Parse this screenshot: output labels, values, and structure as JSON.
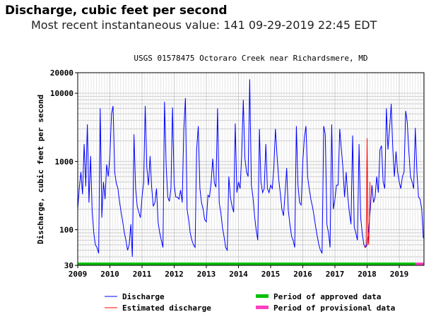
{
  "header": {
    "title": "Discharge, cubic feet per second",
    "subtitle": "Most recent instantaneous value: 141 09-29-2019   22:45 EDT"
  },
  "colors": {
    "discharge": "#0000ff",
    "estimated": "#ff0000",
    "approved": "#00c000",
    "provisional": "#ff40c0",
    "grid": "#c8c8c8"
  },
  "chart_data": {
    "type": "line",
    "title": "USGS 01578475 Octoraro Creek near Richardsmere, MD",
    "ylabel": "Discharge, cubic feet per second",
    "xlabel": "",
    "yscale": "log",
    "ylim": [
      30,
      20000
    ],
    "xlim": [
      2009.0,
      2019.77
    ],
    "yticks": [
      30,
      100,
      1000,
      10000,
      20000
    ],
    "xticks": [
      "2009",
      "2010",
      "2011",
      "2012",
      "2013",
      "2014",
      "2015",
      "2016",
      "2017",
      "2018",
      "2019"
    ],
    "grid": true,
    "legend_position": "bottom",
    "legend": [
      {
        "label": "Discharge",
        "kind": "line",
        "color": "#0000ff"
      },
      {
        "label": "Estimated discharge",
        "kind": "line",
        "color": "#ff0000"
      },
      {
        "label": "Period of approved data",
        "kind": "bar",
        "color": "#00c000"
      },
      {
        "label": "Period of provisional data",
        "kind": "bar",
        "color": "#ff40c0"
      }
    ],
    "series": [
      {
        "name": "Discharge",
        "color": "#0000ff",
        "x": [
          2009.0,
          2009.05,
          2009.1,
          2009.15,
          2009.2,
          2009.25,
          2009.3,
          2009.35,
          2009.4,
          2009.45,
          2009.5,
          2009.55,
          2009.6,
          2009.65,
          2009.7,
          2009.75,
          2009.8,
          2009.85,
          2009.9,
          2009.95,
          2010.0,
          2010.05,
          2010.1,
          2010.15,
          2010.2,
          2010.25,
          2010.3,
          2010.35,
          2010.4,
          2010.45,
          2010.5,
          2010.55,
          2010.6,
          2010.65,
          2010.7,
          2010.75,
          2010.8,
          2010.85,
          2010.9,
          2010.95,
          2011.0,
          2011.05,
          2011.1,
          2011.15,
          2011.2,
          2011.25,
          2011.3,
          2011.35,
          2011.4,
          2011.45,
          2011.5,
          2011.55,
          2011.6,
          2011.65,
          2011.7,
          2011.75,
          2011.8,
          2011.85,
          2011.9,
          2011.95,
          2012.0,
          2012.05,
          2012.1,
          2012.15,
          2012.2,
          2012.25,
          2012.3,
          2012.35,
          2012.4,
          2012.45,
          2012.5,
          2012.55,
          2012.6,
          2012.65,
          2012.7,
          2012.75,
          2012.8,
          2012.85,
          2012.9,
          2012.95,
          2013.0,
          2013.05,
          2013.1,
          2013.15,
          2013.2,
          2013.25,
          2013.3,
          2013.35,
          2013.4,
          2013.45,
          2013.5,
          2013.55,
          2013.6,
          2013.65,
          2013.7,
          2013.75,
          2013.8,
          2013.85,
          2013.9,
          2013.95,
          2014.0,
          2014.05,
          2014.1,
          2014.15,
          2014.2,
          2014.25,
          2014.3,
          2014.35,
          2014.4,
          2014.45,
          2014.5,
          2014.55,
          2014.6,
          2014.65,
          2014.7,
          2014.75,
          2014.8,
          2014.85,
          2014.9,
          2014.95,
          2015.0,
          2015.05,
          2015.1,
          2015.15,
          2015.2,
          2015.25,
          2015.3,
          2015.35,
          2015.4,
          2015.45,
          2015.5,
          2015.55,
          2015.6,
          2015.65,
          2015.7,
          2015.75,
          2015.8,
          2015.85,
          2015.9,
          2015.95,
          2016.0,
          2016.05,
          2016.1,
          2016.15,
          2016.2,
          2016.25,
          2016.3,
          2016.35,
          2016.4,
          2016.45,
          2016.5,
          2016.55,
          2016.6,
          2016.65,
          2016.7,
          2016.75,
          2016.8,
          2016.85,
          2016.9,
          2016.95,
          2017.0,
          2017.05,
          2017.1,
          2017.15,
          2017.2,
          2017.25,
          2017.3,
          2017.35,
          2017.4,
          2017.45,
          2017.5,
          2017.55,
          2017.6,
          2017.65,
          2017.7,
          2017.75,
          2017.8,
          2017.85,
          2017.9,
          2017.95,
          2018.0,
          2018.05,
          2018.1,
          2018.15,
          2018.2,
          2018.25,
          2018.3,
          2018.35,
          2018.4,
          2018.45,
          2018.5,
          2018.55,
          2018.6,
          2018.65,
          2018.7,
          2018.75,
          2018.8,
          2018.85,
          2018.9,
          2018.95,
          2019.0,
          2019.05,
          2019.1,
          2019.15,
          2019.2,
          2019.25,
          2019.3,
          2019.35,
          2019.4,
          2019.45,
          2019.5,
          2019.55,
          2019.6,
          2019.65,
          2019.7,
          2019.75
        ],
        "y": [
          200,
          420,
          700,
          330,
          1800,
          430,
          3500,
          250,
          1200,
          180,
          90,
          60,
          55,
          45,
          6000,
          150,
          500,
          280,
          900,
          600,
          1200,
          5000,
          6500,
          700,
          480,
          400,
          260,
          180,
          130,
          90,
          70,
          50,
          60,
          120,
          40,
          2500,
          400,
          220,
          180,
          150,
          300,
          500,
          6500,
          800,
          450,
          1200,
          420,
          220,
          250,
          400,
          130,
          90,
          70,
          55,
          7500,
          900,
          300,
          260,
          400,
          6200,
          450,
          300,
          300,
          280,
          380,
          250,
          3000,
          8500,
          200,
          140,
          90,
          70,
          60,
          55,
          1500,
          3300,
          400,
          250,
          200,
          140,
          130,
          320,
          300,
          500,
          1100,
          480,
          420,
          6000,
          250,
          180,
          110,
          80,
          55,
          50,
          600,
          300,
          220,
          180,
          3600,
          350,
          500,
          400,
          1200,
          8000,
          1100,
          700,
          600,
          16000,
          450,
          300,
          160,
          100,
          70,
          3000,
          500,
          350,
          400,
          1800,
          400,
          350,
          450,
          400,
          800,
          3000,
          1200,
          550,
          350,
          200,
          160,
          350,
          800,
          190,
          120,
          80,
          70,
          55,
          3300,
          450,
          250,
          230,
          1000,
          2300,
          3300,
          600,
          400,
          280,
          220,
          160,
          110,
          80,
          60,
          50,
          45,
          3300,
          2500,
          120,
          90,
          55,
          3500,
          200,
          280,
          450,
          450,
          3000,
          1500,
          800,
          300,
          700,
          300,
          180,
          120,
          2400,
          110,
          90,
          70,
          1800,
          150,
          90,
          60,
          55,
          60,
          100,
          200,
          450,
          250,
          300,
          600,
          350,
          1500,
          1700,
          500,
          400,
          6000,
          1500,
          3000,
          7000,
          1500,
          600,
          1400,
          700,
          500,
          400,
          600,
          700,
          5500,
          3800,
          1400,
          600,
          500,
          400,
          3100,
          700,
          300,
          280,
          200,
          75
        ]
      },
      {
        "name": "Estimated discharge",
        "color": "#ff0000",
        "x": [
          2017.92,
          2017.97,
          2018.0,
          2018.03,
          2018.05,
          2018.07,
          2018.09
        ],
        "y": [
          55,
          60,
          2200,
          90,
          60,
          120,
          500
        ]
      }
    ],
    "periods": [
      {
        "name": "Period of approved data",
        "from": 2009.0,
        "to": 2019.5,
        "color": "#00c000"
      },
      {
        "name": "Period of provisional data",
        "from": 2019.5,
        "to": 2019.77,
        "color": "#ff40c0"
      }
    ]
  }
}
